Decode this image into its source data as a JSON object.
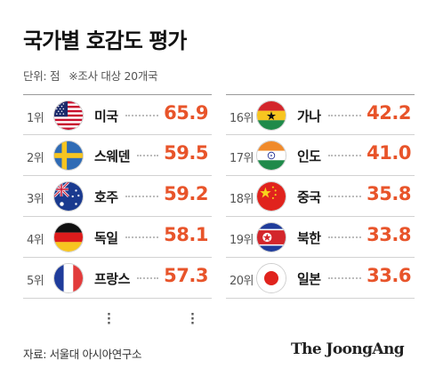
{
  "title": "국가별 호감도 평가",
  "unit_label": "단위: 점",
  "note": "※조사 대상 20개국",
  "chart_data": {
    "type": "table",
    "title": "국가별 호감도 평가",
    "unit": "점",
    "columns": [
      [
        {
          "rank": "1위",
          "country": "미국",
          "value": "65.9",
          "flag_icon": "usa-flag-icon"
        },
        {
          "rank": "2위",
          "country": "스웨덴",
          "value": "59.5",
          "flag_icon": "sweden-flag-icon"
        },
        {
          "rank": "3위",
          "country": "호주",
          "value": "59.2",
          "flag_icon": "australia-flag-icon"
        },
        {
          "rank": "4위",
          "country": "독일",
          "value": "58.1",
          "flag_icon": "germany-flag-icon"
        },
        {
          "rank": "5위",
          "country": "프랑스",
          "value": "57.3",
          "flag_icon": "france-flag-icon"
        }
      ],
      [
        {
          "rank": "16위",
          "country": "가나",
          "value": "42.2",
          "flag_icon": "ghana-flag-icon"
        },
        {
          "rank": "17위",
          "country": "인도",
          "value": "41.0",
          "flag_icon": "india-flag-icon"
        },
        {
          "rank": "18위",
          "country": "중국",
          "value": "35.8",
          "flag_icon": "china-flag-icon"
        },
        {
          "rank": "19위",
          "country": "북한",
          "value": "33.8",
          "flag_icon": "north-korea-flag-icon"
        },
        {
          "rank": "20위",
          "country": "일본",
          "value": "33.6",
          "flag_icon": "japan-flag-icon"
        }
      ]
    ]
  },
  "colors": {
    "value": "#e8542a",
    "title": "#111111"
  },
  "source": "자료: 서울대 아시아연구소",
  "brand": "The JoongAng"
}
